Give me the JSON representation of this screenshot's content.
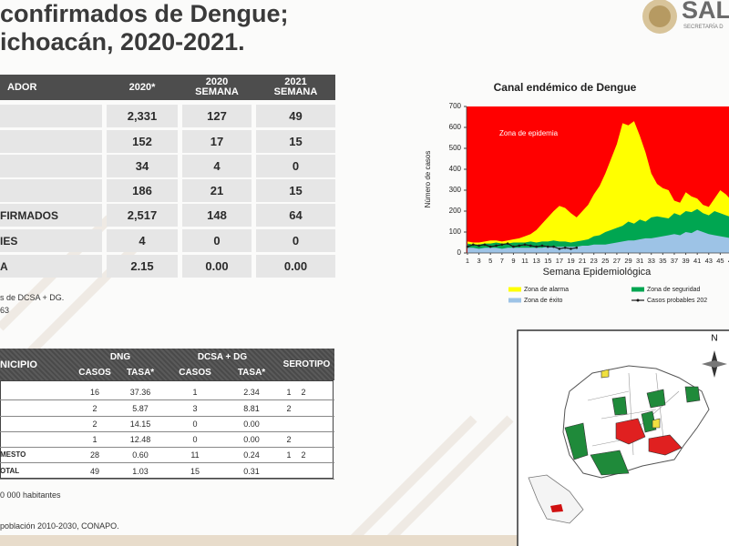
{
  "header": {
    "title_lines": [
      "confirmados de Dengue;",
      "ichoacán, 2020-2021."
    ],
    "logo": "SAL",
    "logo_sub": "SECRETARÍA D"
  },
  "table1": {
    "columns": [
      "ADOR",
      "2020*",
      "2020 SEMANA",
      "2021 SEMANA"
    ],
    "rows": [
      {
        "cells": [
          "2,331",
          "127",
          "49"
        ]
      },
      {
        "cells": [
          "152",
          "17",
          "15"
        ]
      },
      {
        "cells": [
          "34",
          "4",
          "0"
        ]
      },
      {
        "cells": [
          "186",
          "21",
          "15"
        ]
      },
      {
        "label": "FIRMADOS",
        "cells": [
          "2,517",
          "148",
          "64"
        ]
      },
      {
        "label": "IES",
        "cells": [
          "4",
          "0",
          "0"
        ]
      },
      {
        "label": "A",
        "cells": [
          "2.15",
          "0.00",
          "0.00"
        ]
      }
    ],
    "notes": [
      "s de DCSA + DG.",
      "63"
    ]
  },
  "table2": {
    "columns": [
      "NICIPIO",
      "DNG",
      "DCSA + DG",
      "SEROTIPO"
    ],
    "subcolumns": [
      "CASOS",
      "TASA*",
      "CASOS",
      "TASA*"
    ],
    "rows": [
      {
        "cells": [
          "16",
          "37.36",
          "1",
          "2.34"
        ],
        "serotipo": [
          "1",
          "2"
        ]
      },
      {
        "cells": [
          "2",
          "5.87",
          "3",
          "8.81"
        ],
        "serotipo": [
          "2"
        ]
      },
      {
        "cells": [
          "2",
          "14.15",
          "0",
          "0.00"
        ]
      },
      {
        "cells": [
          "1",
          "12.48",
          "0",
          "0.00"
        ],
        "serotipo": [
          "2"
        ]
      },
      {
        "label": "MESTO",
        "cells": [
          "28",
          "0.60",
          "11",
          "0.24"
        ],
        "serotipo": [
          "1",
          "2"
        ]
      },
      {
        "label": "OTAL",
        "cells": [
          "49",
          "1.03",
          "15",
          "0.31"
        ]
      }
    ],
    "notes": [
      "0 000 habitantes",
      "población 2010-2030,  CONAPO."
    ]
  },
  "chart": {
    "type": "area",
    "title": "Canal endémico de Dengue",
    "ylabel": "Número de casos",
    "xlabel": "Semana Epidemiológica",
    "annotation": "Zona de epidemia",
    "epidemic_color": "#ff0000",
    "x": [
      1,
      2,
      3,
      4,
      5,
      6,
      7,
      8,
      9,
      10,
      11,
      12,
      13,
      14,
      15,
      16,
      17,
      18,
      19,
      20,
      21,
      22,
      23,
      24,
      25,
      26,
      27,
      28,
      29,
      30,
      31,
      32,
      33,
      34,
      35,
      36,
      37,
      38,
      39,
      40,
      41,
      42,
      43,
      44,
      45,
      46,
      47
    ],
    "xlim": [
      1,
      47
    ],
    "xticks": [
      1,
      3,
      5,
      7,
      9,
      11,
      13,
      15,
      17,
      19,
      21,
      23,
      25,
      27,
      29,
      31,
      33,
      35,
      37,
      39,
      41,
      43,
      45,
      47
    ],
    "ylim": [
      0,
      700
    ],
    "yticks": [
      0,
      100,
      200,
      300,
      400,
      500,
      600,
      700
    ],
    "series": [
      {
        "name": "Zona de alarma",
        "color": "#ffff00",
        "values": [
          55,
          50,
          50,
          55,
          60,
          60,
          55,
          60,
          65,
          70,
          80,
          90,
          110,
          140,
          170,
          200,
          225,
          215,
          190,
          170,
          200,
          230,
          280,
          320,
          380,
          450,
          520,
          620,
          610,
          630,
          560,
          480,
          380,
          330,
          310,
          300,
          250,
          240,
          290,
          270,
          260,
          230,
          220,
          260,
          300,
          280,
          250
        ]
      },
      {
        "name": "Zona de seguridad",
        "color": "#00a651",
        "values": [
          45,
          40,
          40,
          45,
          45,
          50,
          45,
          45,
          50,
          50,
          50,
          55,
          50,
          55,
          55,
          60,
          55,
          55,
          50,
          55,
          60,
          65,
          80,
          85,
          100,
          110,
          120,
          130,
          150,
          140,
          160,
          150,
          170,
          175,
          170,
          165,
          190,
          180,
          200,
          195,
          210,
          190,
          180,
          200,
          190,
          180,
          170
        ]
      },
      {
        "name": "Zona de éxito",
        "color": "#9dc3e6",
        "values": [
          25,
          25,
          20,
          25,
          25,
          25,
          20,
          25,
          25,
          25,
          25,
          25,
          25,
          25,
          30,
          30,
          30,
          30,
          30,
          30,
          35,
          35,
          40,
          40,
          40,
          45,
          50,
          55,
          60,
          60,
          65,
          70,
          70,
          75,
          80,
          85,
          90,
          85,
          100,
          95,
          110,
          100,
          90,
          85,
          80,
          75,
          70
        ]
      },
      {
        "name": "Casos probables 202",
        "color": "#1a1a1a",
        "kind": "line",
        "values": [
          30,
          40,
          35,
          40,
          30,
          35,
          40,
          45,
          30,
          35,
          40,
          35,
          30,
          35,
          30,
          30,
          20,
          25,
          20,
          25,
          null,
          null,
          null,
          null,
          null,
          null,
          null,
          null,
          null,
          null,
          null,
          null,
          null,
          null,
          null,
          null,
          null,
          null,
          null,
          null,
          null,
          null,
          null,
          null,
          null,
          null,
          null
        ]
      }
    ]
  },
  "map": {
    "compass": "N"
  }
}
